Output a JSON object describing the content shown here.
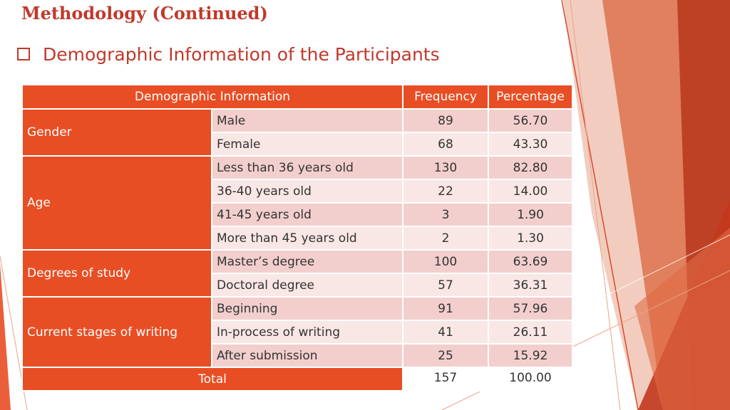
{
  "slide": {
    "title": "Methodology (Continued)",
    "subtitle": "Demographic Information of the Participants"
  },
  "table": {
    "headers": {
      "demographic": "Demographic Information",
      "frequency": "Frequency",
      "percentage": "Percentage"
    },
    "groups": [
      {
        "name": "Gender",
        "rows": [
          {
            "label": "Male",
            "frequency": "89",
            "percentage": "56.70"
          },
          {
            "label": "Female",
            "frequency": "68",
            "percentage": "43.30"
          }
        ]
      },
      {
        "name": "Age",
        "rows": [
          {
            "label": "Less than 36 years old",
            "frequency": "130",
            "percentage": "82.80"
          },
          {
            "label": "36-40 years old",
            "frequency": "22",
            "percentage": "14.00"
          },
          {
            "label": "41-45 years old",
            "frequency": "3",
            "percentage": "1.90"
          },
          {
            "label": "More than 45 years old",
            "frequency": "2",
            "percentage": "1.30"
          }
        ]
      },
      {
        "name": "Degrees of study",
        "rows": [
          {
            "label": "Master’s degree",
            "frequency": "100",
            "percentage": "63.69"
          },
          {
            "label": "Doctoral degree",
            "frequency": "57",
            "percentage": "36.31"
          }
        ]
      },
      {
        "name": "Current stages of writing",
        "rows": [
          {
            "label": "Beginning",
            "frequency": "91",
            "percentage": "57.96"
          },
          {
            "label": "In-process of writing",
            "frequency": "41",
            "percentage": "26.11"
          },
          {
            "label": "After submission",
            "frequency": "25",
            "percentage": "15.92"
          }
        ]
      }
    ],
    "total": {
      "label": "Total",
      "frequency": "157",
      "percentage": "100.00"
    }
  },
  "colors": {
    "accent": "#e84e24",
    "title": "#c0392b",
    "row_dark": "#f2cfcd",
    "row_light": "#f9e7e6"
  }
}
